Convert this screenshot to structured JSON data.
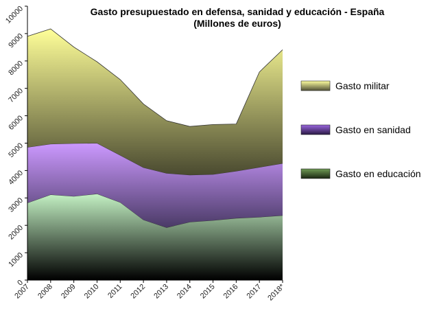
{
  "chart_data": {
    "type": "area",
    "stacked": true,
    "title": "Gasto presupuestado en defensa, sanidad y educación - España",
    "subtitle": "(Millones de euros)",
    "x": [
      "2007",
      "2008",
      "2009",
      "2010",
      "2011",
      "2012",
      "2013",
      "2014",
      "2015",
      "2016",
      "2017",
      "2018*"
    ],
    "ylim": [
      0,
      10000
    ],
    "yticks": [
      0,
      1000,
      2000,
      3000,
      4000,
      5000,
      6000,
      7000,
      8000,
      9000,
      10000
    ],
    "grid": false,
    "legend_position": "right",
    "series": [
      {
        "name": "Gasto en educación",
        "values": [
          2820,
          3120,
          3060,
          3150,
          2840,
          2200,
          1920,
          2120,
          2180,
          2260,
          2300,
          2360
        ],
        "colors": {
          "top": "#c4f2c4",
          "bottom": "#000000",
          "legend_top": "#6f9b55",
          "legend_bottom": "#1a2612"
        }
      },
      {
        "name": "Gasto en sanidad",
        "values": [
          2030,
          1850,
          1930,
          1850,
          1720,
          1910,
          1980,
          1720,
          1680,
          1720,
          1820,
          1900
        ],
        "colors": {
          "top": "#cc99ff",
          "bottom": "#4a3a66",
          "legend_top": "#9966dd",
          "legend_bottom": "#2a1a44"
        }
      },
      {
        "name": "Gasto militar",
        "values": [
          4050,
          4200,
          3520,
          2970,
          2760,
          2320,
          1920,
          1770,
          1820,
          1720,
          3480,
          4150
        ],
        "colors": {
          "top": "#ffff99",
          "bottom": "#4a4a30",
          "legend_top": "#ffffa0",
          "legend_bottom": "#505036"
        }
      }
    ]
  }
}
